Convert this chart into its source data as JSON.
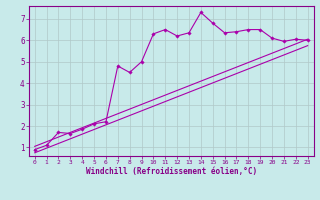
{
  "xlabel": "Windchill (Refroidissement éolien,°C)",
  "ylabel": "",
  "bg_color": "#c8eaea",
  "grid_color": "#b0c8c8",
  "line_color": "#aa00aa",
  "xlim": [
    -0.5,
    23.5
  ],
  "ylim": [
    0.6,
    7.6
  ],
  "xticks": [
    0,
    1,
    2,
    3,
    4,
    5,
    6,
    7,
    8,
    9,
    10,
    11,
    12,
    13,
    14,
    15,
    16,
    17,
    18,
    19,
    20,
    21,
    22,
    23
  ],
  "yticks": [
    1,
    2,
    3,
    4,
    5,
    6,
    7
  ],
  "data_x": [
    0,
    1,
    2,
    3,
    4,
    5,
    6,
    7,
    8,
    9,
    10,
    11,
    12,
    13,
    14,
    15,
    16,
    17,
    18,
    19,
    20,
    21,
    22,
    23
  ],
  "data_y": [
    0.9,
    1.1,
    1.7,
    1.65,
    1.85,
    2.1,
    2.2,
    4.8,
    4.5,
    5.0,
    6.3,
    6.5,
    6.2,
    6.35,
    7.3,
    6.8,
    6.35,
    6.4,
    6.5,
    6.5,
    6.1,
    5.95,
    6.05,
    6.0
  ],
  "trend1_x": [
    0,
    23
  ],
  "trend1_y": [
    1.05,
    6.05
  ],
  "trend2_x": [
    0,
    23
  ],
  "trend2_y": [
    0.75,
    5.75
  ]
}
